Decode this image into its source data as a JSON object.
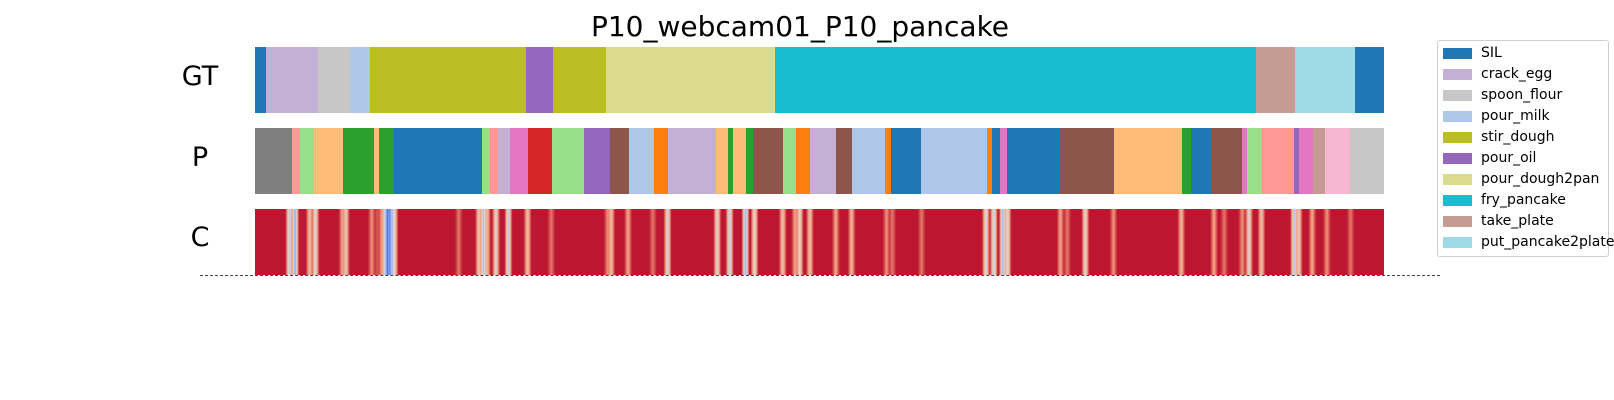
{
  "chart_data": {
    "type": "segmentation_timeline",
    "title": "P10_webcam01_P10_pancake",
    "rows": [
      {
        "label": "GT",
        "segments": [
          {
            "action": "SIL",
            "start": 0,
            "end": 1.0
          },
          {
            "action": "crack_egg",
            "start": 1.0,
            "end": 5.6
          },
          {
            "action": "spoon_flour",
            "start": 5.6,
            "end": 8.4
          },
          {
            "action": "pour_milk",
            "start": 8.4,
            "end": 10.2
          },
          {
            "action": "stir_dough",
            "start": 10.2,
            "end": 24.0
          },
          {
            "action": "pour_oil",
            "start": 24.0,
            "end": 26.4
          },
          {
            "action": "stir_dough",
            "start": 26.4,
            "end": 31.1
          },
          {
            "action": "pour_dough2pan",
            "start": 31.1,
            "end": 46.1
          },
          {
            "action": "fry_pancake",
            "start": 46.1,
            "end": 88.7
          },
          {
            "action": "take_plate",
            "start": 88.7,
            "end": 92.1
          },
          {
            "action": "put_pancake2plate",
            "start": 92.1,
            "end": 97.4
          },
          {
            "action": "SIL",
            "start": 97.4,
            "end": 100
          }
        ]
      },
      {
        "label": "P",
        "segments": [
          {
            "color": "#7f7f7f",
            "start": 0,
            "end": 3.3
          },
          {
            "color": "#ff9896",
            "start": 3.3,
            "end": 4.0
          },
          {
            "color": "#98df8a",
            "start": 4.0,
            "end": 5.2
          },
          {
            "color": "#ffbb78",
            "start": 5.2,
            "end": 7.8
          },
          {
            "color": "#2ca02c",
            "start": 7.8,
            "end": 10.5
          },
          {
            "color": "#ffbb78",
            "start": 10.5,
            "end": 11.0
          },
          {
            "color": "#2ca02c",
            "start": 11.0,
            "end": 12.3
          },
          {
            "color": "#1f77b4",
            "start": 12.3,
            "end": 20.1
          },
          {
            "color": "#98df8a",
            "start": 20.1,
            "end": 20.8
          },
          {
            "color": "#ff9896",
            "start": 20.8,
            "end": 21.5
          },
          {
            "color": "#c5b0d5",
            "start": 21.5,
            "end": 22.6
          },
          {
            "color": "#e377c2",
            "start": 22.6,
            "end": 24.2
          },
          {
            "color": "#d62728",
            "start": 24.2,
            "end": 26.3
          },
          {
            "color": "#98df8a",
            "start": 26.3,
            "end": 29.1
          },
          {
            "color": "#9467bd",
            "start": 29.1,
            "end": 31.4
          },
          {
            "color": "#8c564b",
            "start": 31.4,
            "end": 33.1
          },
          {
            "color": "#aec7e8",
            "start": 33.1,
            "end": 35.3
          },
          {
            "color": "#ff7f0e",
            "start": 35.3,
            "end": 36.6
          },
          {
            "color": "#c5b0d5",
            "start": 36.6,
            "end": 40.8
          },
          {
            "color": "#ffbb78",
            "start": 40.8,
            "end": 41.9
          },
          {
            "color": "#2ca02c",
            "start": 41.9,
            "end": 42.3
          },
          {
            "color": "#ffbb78",
            "start": 42.3,
            "end": 43.5
          },
          {
            "color": "#2ca02c",
            "start": 43.5,
            "end": 44.1
          },
          {
            "color": "#8c564b",
            "start": 44.1,
            "end": 46.8
          },
          {
            "color": "#98df8a",
            "start": 46.8,
            "end": 47.9
          },
          {
            "color": "#ff7f0e",
            "start": 47.9,
            "end": 49.2
          },
          {
            "color": "#c5b0d5",
            "start": 49.2,
            "end": 51.5
          },
          {
            "color": "#8c564b",
            "start": 51.5,
            "end": 52.9
          },
          {
            "color": "#aec7e8",
            "start": 52.9,
            "end": 55.8
          },
          {
            "color": "#ff7f0e",
            "start": 55.8,
            "end": 56.3
          },
          {
            "color": "#1f77b4",
            "start": 56.3,
            "end": 59.0
          },
          {
            "color": "#aec7e8",
            "start": 59.0,
            "end": 64.8
          },
          {
            "color": "#ff7f0e",
            "start": 64.8,
            "end": 65.3
          },
          {
            "color": "#1f77b4",
            "start": 65.3,
            "end": 66.0
          },
          {
            "color": "#e377c2",
            "start": 66.0,
            "end": 66.6
          },
          {
            "color": "#1f77b4",
            "start": 66.6,
            "end": 71.2
          },
          {
            "color": "#8c564b",
            "start": 71.2,
            "end": 76.1
          },
          {
            "color": "#ffbb78",
            "start": 76.1,
            "end": 82.1
          },
          {
            "color": "#2ca02c",
            "start": 82.1,
            "end": 82.9
          },
          {
            "color": "#1f77b4",
            "start": 82.9,
            "end": 84.8
          },
          {
            "color": "#8c564b",
            "start": 84.8,
            "end": 87.4
          },
          {
            "color": "#e377c2",
            "start": 87.4,
            "end": 87.9
          },
          {
            "color": "#98df8a",
            "start": 87.9,
            "end": 89.2
          },
          {
            "color": "#ff9896",
            "start": 89.2,
            "end": 92.0
          },
          {
            "color": "#9467bd",
            "start": 92.0,
            "end": 92.5
          },
          {
            "color": "#e377c2",
            "start": 92.5,
            "end": 93.7
          },
          {
            "color": "#c49c94",
            "start": 93.7,
            "end": 94.8
          },
          {
            "color": "#f7b6d2",
            "start": 94.8,
            "end": 97.0
          },
          {
            "color": "#c7c7c7",
            "start": 97.0,
            "end": 100
          }
        ]
      },
      {
        "label": "C",
        "colormap": "coolwarm",
        "base_value": 0.97,
        "dips": [
          {
            "at": 3.0,
            "value": 0.4
          },
          {
            "at": 3.5,
            "value": 0.25
          },
          {
            "at": 4.8,
            "value": 0.6
          },
          {
            "at": 5.3,
            "value": 0.45
          },
          {
            "at": 7.7,
            "value": 0.7
          },
          {
            "at": 8.0,
            "value": 0.55
          },
          {
            "at": 10.3,
            "value": 0.75
          },
          {
            "at": 10.8,
            "value": 0.85
          },
          {
            "at": 11.2,
            "value": 0.7
          },
          {
            "at": 11.5,
            "value": 0.35
          },
          {
            "at": 11.7,
            "value": 0.05
          },
          {
            "at": 11.9,
            "value": 0.1
          },
          {
            "at": 12.1,
            "value": 0.3
          },
          {
            "at": 12.3,
            "value": 0.5
          },
          {
            "at": 18.0,
            "value": 0.8
          },
          {
            "at": 19.8,
            "value": 0.55
          },
          {
            "at": 20.2,
            "value": 0.35
          },
          {
            "at": 20.5,
            "value": 0.6
          },
          {
            "at": 21.3,
            "value": 0.5
          },
          {
            "at": 22.4,
            "value": 0.4
          },
          {
            "at": 24.1,
            "value": 0.6
          },
          {
            "at": 26.2,
            "value": 0.8
          },
          {
            "at": 31.2,
            "value": 0.75
          },
          {
            "at": 31.5,
            "value": 0.6
          },
          {
            "at": 33.0,
            "value": 0.7
          },
          {
            "at": 35.2,
            "value": 0.8
          },
          {
            "at": 36.5,
            "value": 0.45
          },
          {
            "at": 40.9,
            "value": 0.5
          },
          {
            "at": 42.0,
            "value": 0.4
          },
          {
            "at": 43.4,
            "value": 0.3
          },
          {
            "at": 44.2,
            "value": 0.5
          },
          {
            "at": 46.7,
            "value": 0.6
          },
          {
            "at": 47.8,
            "value": 0.7
          },
          {
            "at": 48.2,
            "value": 0.5
          },
          {
            "at": 49.1,
            "value": 0.6
          },
          {
            "at": 51.4,
            "value": 0.7
          },
          {
            "at": 52.8,
            "value": 0.65
          },
          {
            "at": 55.9,
            "value": 0.75
          },
          {
            "at": 56.4,
            "value": 0.8
          },
          {
            "at": 59.0,
            "value": 0.8
          },
          {
            "at": 64.7,
            "value": 0.45
          },
          {
            "at": 65.4,
            "value": 0.4
          },
          {
            "at": 66.2,
            "value": 0.3
          },
          {
            "at": 66.6,
            "value": 0.45
          },
          {
            "at": 71.3,
            "value": 0.7
          },
          {
            "at": 71.9,
            "value": 0.8
          },
          {
            "at": 73.5,
            "value": 0.5
          },
          {
            "at": 76.0,
            "value": 0.75
          },
          {
            "at": 82.0,
            "value": 0.65
          },
          {
            "at": 84.9,
            "value": 0.7
          },
          {
            "at": 85.8,
            "value": 0.8
          },
          {
            "at": 87.4,
            "value": 0.75
          },
          {
            "at": 88.0,
            "value": 0.5
          },
          {
            "at": 89.1,
            "value": 0.6
          },
          {
            "at": 92.0,
            "value": 0.35
          },
          {
            "at": 92.4,
            "value": 0.55
          },
          {
            "at": 93.6,
            "value": 0.7
          },
          {
            "at": 94.9,
            "value": 0.75
          },
          {
            "at": 97.0,
            "value": 0.8
          }
        ]
      }
    ],
    "x_range": [
      0,
      100
    ],
    "legend": {
      "placement": "right",
      "items": [
        {
          "label": "SIL",
          "color": "#1f77b4"
        },
        {
          "label": "crack_egg",
          "color": "#c5b0d5"
        },
        {
          "label": "spoon_flour",
          "color": "#c7c7c7"
        },
        {
          "label": "pour_milk",
          "color": "#aec7e8"
        },
        {
          "label": "stir_dough",
          "color": "#bcbd22"
        },
        {
          "label": "pour_oil",
          "color": "#9467bd"
        },
        {
          "label": "pour_dough2pan",
          "color": "#dbdb8d"
        },
        {
          "label": "fry_pancake",
          "color": "#17becf"
        },
        {
          "label": "take_plate",
          "color": "#c49c94"
        },
        {
          "label": "put_pancake2plate",
          "color": "#9edae5"
        }
      ]
    }
  }
}
